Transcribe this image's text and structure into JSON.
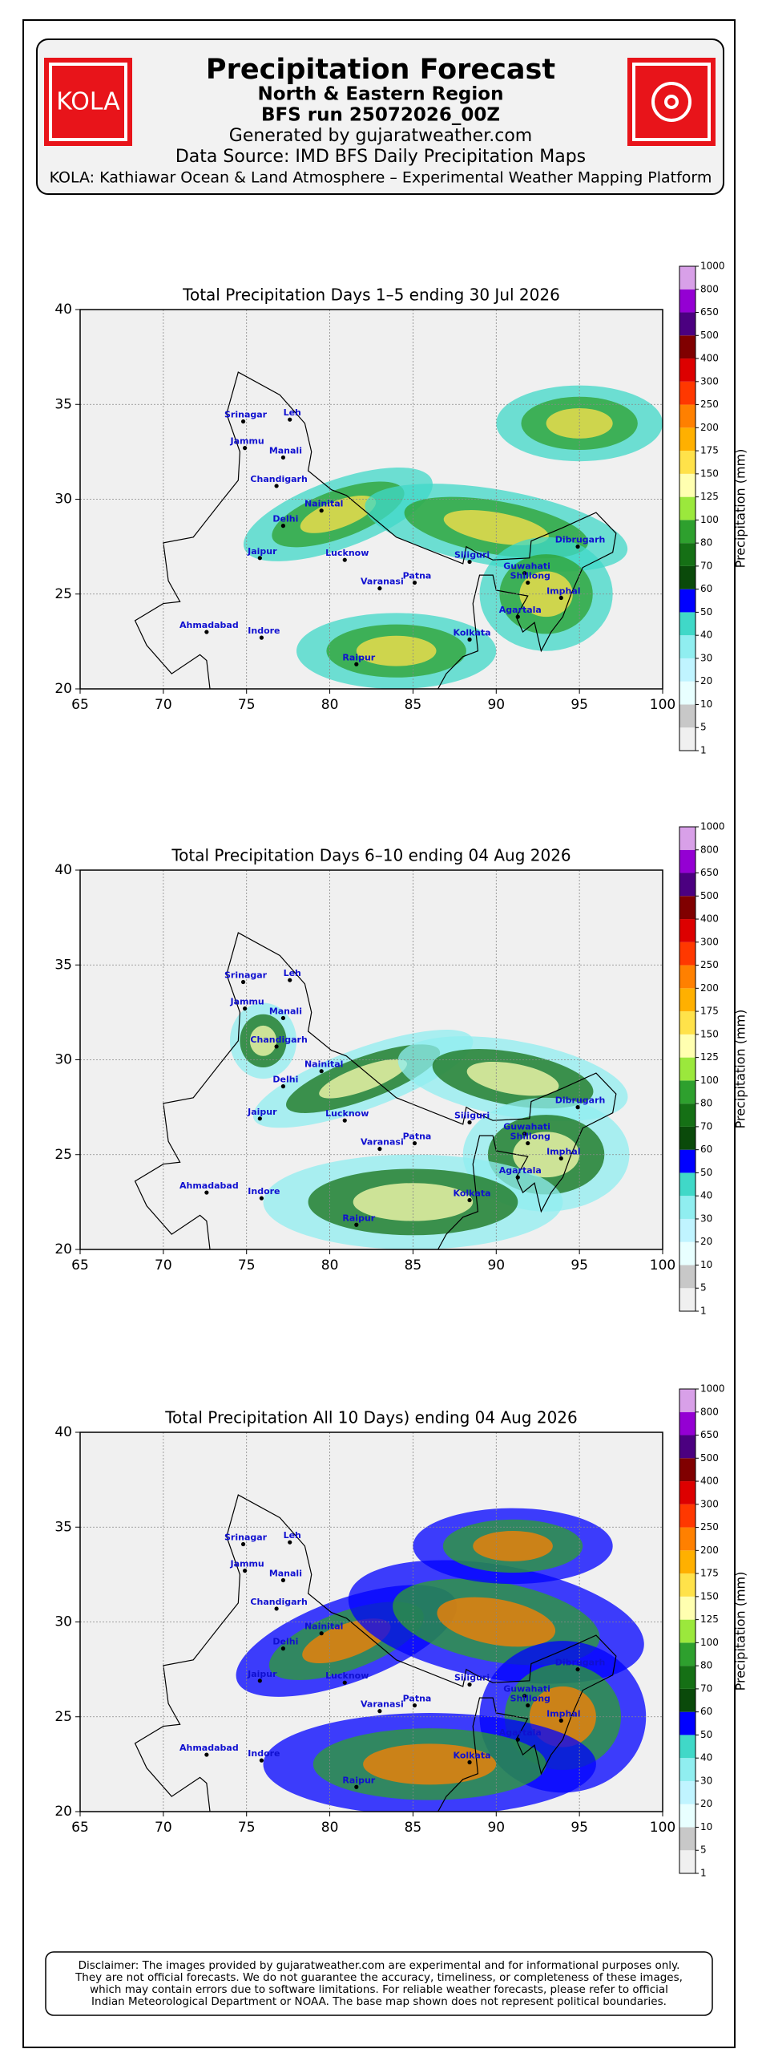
{
  "header": {
    "logo_text": "KOLA",
    "title": "Precipitation Forecast",
    "subtitle": "North & Eastern Region",
    "run": "BFS run 25072026_00Z",
    "generated": "Generated by gujaratweather.com",
    "source": "Data Source: IMD BFS Daily Precipitation Maps",
    "platform": "KOLA: Kathiawar Ocean & Land Atmosphere – Experimental Weather Mapping Platform"
  },
  "chart_data": [
    {
      "type": "map",
      "title": "Total Precipitation Days 1–5 ending 30 Jul 2026",
      "xlim": [
        65,
        100
      ],
      "ylim": [
        20,
        40
      ],
      "xticks": [
        65,
        70,
        75,
        80,
        85,
        90,
        95,
        100
      ],
      "yticks": [
        20,
        25,
        30,
        35,
        40
      ],
      "grid": true,
      "locations": [
        "Srinagar",
        "Leh",
        "Jammu",
        "Manali",
        "Chandigarh",
        "Nainital",
        "Delhi",
        "Jaipur",
        "Lucknow",
        "Varanasi",
        "Patna",
        "Siliguri",
        "Guwahati",
        "Shillong",
        "Dibrugarh",
        "Imphal",
        "Agartala",
        "Kolkata",
        "Ahmadabad",
        "Indore",
        "Raipur"
      ],
      "colorbar": {
        "label": "Precipitation (mm)",
        "ticks": [
          1,
          5,
          10,
          20,
          30,
          40,
          50,
          60,
          70,
          80,
          100,
          125,
          150,
          175,
          200,
          250,
          300,
          400,
          500,
          650,
          800,
          1000
        ],
        "colors": [
          "#f0f0f0",
          "#c8c8c8",
          "#e8ffff",
          "#c0f4ff",
          "#90eef0",
          "#40d8c8",
          "#0000ff",
          "#0a4a0a",
          "#157015",
          "#2ea02e",
          "#9be83c",
          "#ffffb0",
          "#ffe24a",
          "#ffb000",
          "#ff8000",
          "#ff3800",
          "#dd0000",
          "#800000",
          "#4b0080",
          "#9400d3",
          "#d8a0e8"
        ]
      }
    },
    {
      "type": "map",
      "title": "Total Precipitation Days 6–10 ending 04 Aug 2026",
      "xlim": [
        65,
        100
      ],
      "ylim": [
        20,
        40
      ],
      "xticks": [
        65,
        70,
        75,
        80,
        85,
        90,
        95,
        100
      ],
      "yticks": [
        20,
        25,
        30,
        35,
        40
      ],
      "grid": true,
      "locations": [
        "Srinagar",
        "Leh",
        "Jammu",
        "Manali",
        "Chandigarh",
        "Nainital",
        "Delhi",
        "Jaipur",
        "Lucknow",
        "Varanasi",
        "Patna",
        "Siliguri",
        "Guwahati",
        "Shillong",
        "Dibrugarh",
        "Imphal",
        "Agartala",
        "Kolkata",
        "Ahmadabad",
        "Indore",
        "Raipur"
      ],
      "colorbar": {
        "label": "Precipitation (mm)",
        "ticks": [
          1,
          5,
          10,
          20,
          30,
          40,
          50,
          60,
          70,
          80,
          100,
          125,
          150,
          175,
          200,
          250,
          300,
          400,
          500,
          650,
          800,
          1000
        ],
        "colors": [
          "#f0f0f0",
          "#c8c8c8",
          "#e8ffff",
          "#c0f4ff",
          "#90eef0",
          "#40d8c8",
          "#0000ff",
          "#0a4a0a",
          "#157015",
          "#2ea02e",
          "#9be83c",
          "#ffffb0",
          "#ffe24a",
          "#ffb000",
          "#ff8000",
          "#ff3800",
          "#dd0000",
          "#800000",
          "#4b0080",
          "#9400d3",
          "#d8a0e8"
        ]
      }
    },
    {
      "type": "map",
      "title": "Total Precipitation All 10 Days) ending 04 Aug 2026",
      "xlim": [
        65,
        100
      ],
      "ylim": [
        20,
        40
      ],
      "xticks": [
        65,
        70,
        75,
        80,
        85,
        90,
        95,
        100
      ],
      "yticks": [
        20,
        25,
        30,
        35,
        40
      ],
      "grid": true,
      "locations": [
        "Srinagar",
        "Leh",
        "Jammu",
        "Manali",
        "Chandigarh",
        "Nainital",
        "Delhi",
        "Jaipur",
        "Lucknow",
        "Varanasi",
        "Patna",
        "Siliguri",
        "Guwahati",
        "Shillong",
        "Dibrugarh",
        "Imphal",
        "Agartala",
        "Kolkata",
        "Ahmadabad",
        "Indore",
        "Raipur"
      ],
      "colorbar": {
        "label": "Precipitation (mm)",
        "ticks": [
          1,
          5,
          10,
          20,
          30,
          40,
          50,
          60,
          70,
          80,
          100,
          125,
          150,
          175,
          200,
          250,
          300,
          400,
          500,
          650,
          800,
          1000
        ],
        "colors": [
          "#f0f0f0",
          "#c8c8c8",
          "#e8ffff",
          "#c0f4ff",
          "#90eef0",
          "#40d8c8",
          "#0000ff",
          "#0a4a0a",
          "#157015",
          "#2ea02e",
          "#9be83c",
          "#ffffb0",
          "#ffe24a",
          "#ffb000",
          "#ff8000",
          "#ff3800",
          "#dd0000",
          "#800000",
          "#4b0080",
          "#9400d3",
          "#d8a0e8"
        ]
      }
    }
  ],
  "disclaimer": [
    "Disclaimer: The images provided by gujaratweather.com are experimental and for informational purposes only.",
    "They are not official forecasts. We do not guarantee the accuracy, timeliness, or completeness of these images,",
    "which may contain errors due to software limitations. For reliable weather forecasts, please refer to official",
    "Indian Meteorological Department or NOAA. The base map shown does not represent political boundaries."
  ]
}
